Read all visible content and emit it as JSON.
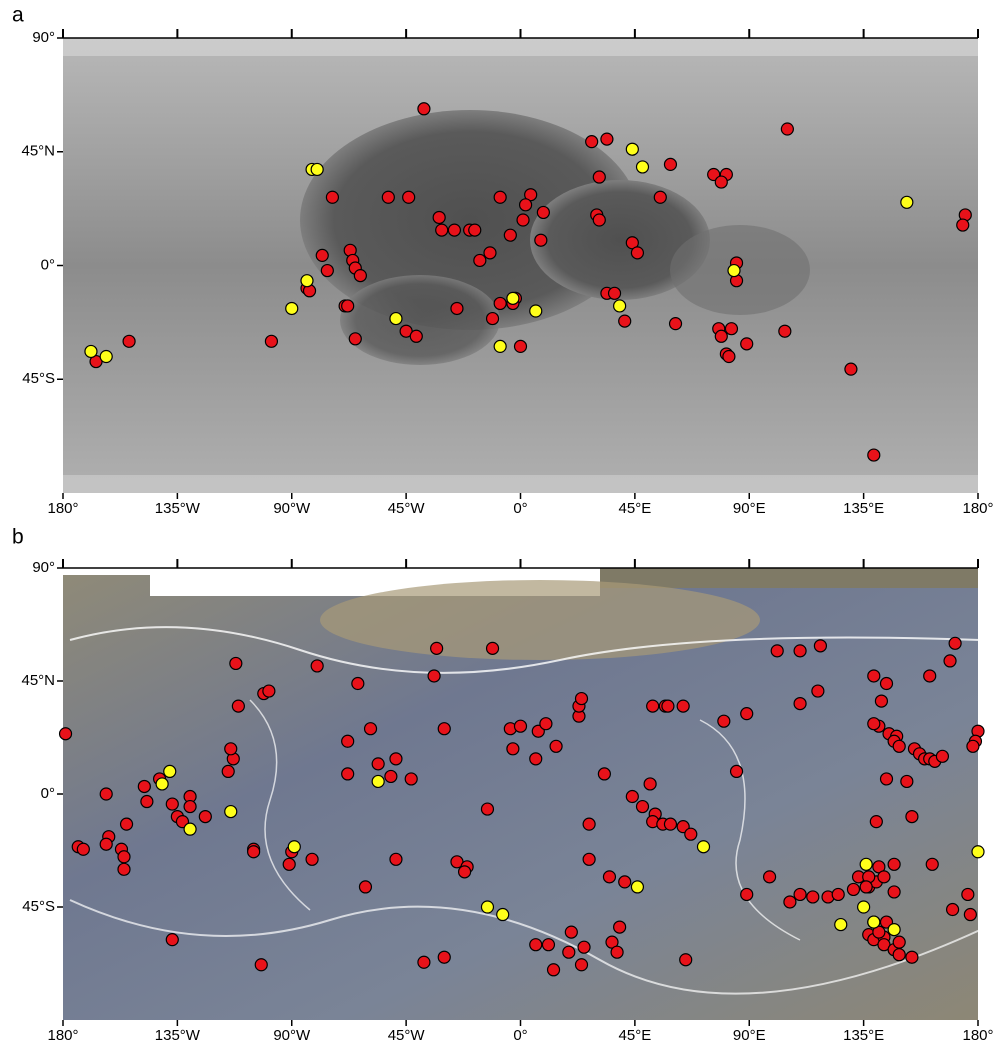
{
  "chart_data": [
    {
      "type": "scatter",
      "title": "a",
      "xlim": [
        -180,
        180
      ],
      "ylim": [
        -90,
        90
      ],
      "xticks": [
        {
          "value": -180,
          "label": "180°"
        },
        {
          "value": -135,
          "label": "135°W"
        },
        {
          "value": -90,
          "label": "90°W"
        },
        {
          "value": -45,
          "label": "45°W"
        },
        {
          "value": 0,
          "label": "0°"
        },
        {
          "value": 45,
          "label": "45°E"
        },
        {
          "value": 90,
          "label": "90°E"
        },
        {
          "value": 135,
          "label": "135°E"
        },
        {
          "value": 180,
          "label": "180°"
        }
      ],
      "yticks": [
        {
          "value": 90,
          "label": "90°"
        },
        {
          "value": 45,
          "label": "45°N"
        },
        {
          "value": 0,
          "label": "0°"
        },
        {
          "value": -45,
          "label": "45°S"
        }
      ],
      "series": [
        {
          "color": "#e8121a",
          "x": [
            -38,
            28,
            34,
            31,
            59,
            76,
            81,
            79,
            105,
            55,
            30,
            31,
            44,
            46,
            9,
            4,
            2,
            1,
            -8,
            8,
            -4,
            -12,
            -16,
            -32,
            -31,
            -26,
            -20,
            -18,
            -52,
            -44,
            -74,
            -78,
            -67,
            -66,
            -65,
            -63,
            -76,
            -84,
            -83,
            -69,
            -68,
            -65,
            -98,
            -154,
            -167,
            -45,
            -41,
            -25,
            -11,
            -8,
            -2,
            -3,
            0,
            34,
            37,
            41,
            61,
            78,
            79,
            83,
            81,
            82,
            89,
            85,
            85,
            104,
            130,
            139,
            175,
            174
          ],
          "y": [
            62,
            49,
            50,
            35,
            40,
            36,
            36,
            33,
            54,
            27,
            20,
            18,
            9,
            5,
            21,
            28,
            24,
            18,
            27,
            10,
            12,
            5,
            2,
            19,
            14,
            14,
            14,
            14,
            27,
            27,
            27,
            4,
            6,
            2,
            -1,
            -4,
            -2,
            -9,
            -10,
            -16,
            -16,
            -29,
            -30,
            -30,
            -38,
            -26,
            -28,
            -17,
            -21,
            -15,
            -13,
            -15,
            -32,
            -11,
            -11,
            -22,
            -23,
            -25,
            -28,
            -25,
            -35,
            -36,
            -31,
            1,
            -6,
            -26,
            -41,
            -75,
            20,
            16
          ]
        },
        {
          "color": "#ffff1a",
          "x": [
            -82,
            -80,
            44,
            48,
            152,
            84,
            -84,
            -90,
            -3,
            6,
            39,
            -49,
            -8,
            -169,
            -163
          ],
          "y": [
            38,
            38,
            46,
            39,
            25,
            -2,
            -6,
            -17,
            -13,
            -18,
            -16,
            -21,
            -32,
            -34,
            -36
          ]
        }
      ]
    },
    {
      "type": "scatter",
      "title": "b",
      "xlim": [
        -180,
        180
      ],
      "ylim": [
        -90,
        90
      ],
      "xticks": [
        {
          "value": -180,
          "label": "180°"
        },
        {
          "value": -135,
          "label": "135°W"
        },
        {
          "value": -90,
          "label": "90°W"
        },
        {
          "value": -45,
          "label": "45°W"
        },
        {
          "value": 0,
          "label": "0°"
        },
        {
          "value": 45,
          "label": "45°E"
        },
        {
          "value": 90,
          "label": "90°E"
        },
        {
          "value": 135,
          "label": "135°E"
        },
        {
          "value": 180,
          "label": "180°"
        }
      ],
      "yticks": [
        {
          "value": 90,
          "label": "90°"
        },
        {
          "value": 45,
          "label": "45°N"
        },
        {
          "value": 0,
          "label": "0°"
        },
        {
          "value": -45,
          "label": "45°S"
        }
      ],
      "series": [
        {
          "color": "#e8121a",
          "x": [
            -179,
            -163,
            -162,
            -163,
            -174,
            -172,
            -157,
            -156,
            -156,
            -155,
            -148,
            -147,
            -142,
            -137,
            -135,
            -133,
            -130,
            -130,
            -124,
            -115,
            -113,
            -114,
            -111,
            -112,
            -101,
            -99,
            -80,
            -105,
            -105,
            -90,
            -91,
            -82,
            -102,
            -137,
            -61,
            -64,
            -59,
            -68,
            -68,
            -56,
            -51,
            -49,
            -43,
            -49,
            -33,
            -34,
            -30,
            -38,
            -30,
            -25,
            -21,
            -22,
            -13,
            -11,
            -4,
            0,
            7,
            10,
            -3,
            6,
            14,
            6,
            11,
            19,
            25,
            20,
            13,
            24,
            27,
            36,
            38,
            39,
            23,
            23,
            24,
            27,
            33,
            44,
            48,
            52,
            57,
            58,
            64,
            51,
            53,
            52,
            56,
            59,
            64,
            67,
            35,
            41,
            65,
            80,
            89,
            85,
            98,
            89,
            106,
            110,
            118,
            117,
            101,
            110,
            110,
            115,
            121,
            125,
            131,
            137,
            140,
            133,
            137,
            136,
            141,
            147,
            143,
            147,
            139,
            137,
            139,
            143,
            143,
            147,
            149,
            144,
            141,
            154,
            149,
            162,
            154,
            140,
            139,
            144,
            142,
            141,
            139,
            145,
            148,
            147,
            149,
            155,
            157,
            159,
            161,
            163,
            166,
            171,
            169,
            161,
            180,
            179,
            178,
            170,
            176,
            177,
            152,
            144
          ],
          "y": [
            24,
            0,
            -17,
            -20,
            -21,
            -22,
            -22,
            -25,
            -30,
            -12,
            3,
            -3,
            6,
            -4,
            -9,
            -11,
            -1,
            -5,
            -9,
            9,
            14,
            18,
            35,
            52,
            40,
            41,
            51,
            -22,
            -23,
            -23,
            -28,
            -26,
            -68,
            -58,
            -37,
            44,
            26,
            21,
            8,
            12,
            7,
            14,
            6,
            -26,
            58,
            47,
            26,
            -67,
            -65,
            -27,
            -29,
            -31,
            -6,
            58,
            26,
            27,
            25,
            28,
            18,
            14,
            19,
            -60,
            -60,
            -63,
            -61,
            -55,
            -70,
            -68,
            -26,
            -59,
            -63,
            -53,
            31,
            35,
            38,
            -12,
            8,
            -1,
            -5,
            35,
            35,
            35,
            35,
            4,
            -8,
            -11,
            -12,
            -12,
            -13,
            -16,
            -33,
            -35,
            -66,
            29,
            32,
            9,
            -33,
            -40,
            -43,
            57,
            59,
            41,
            57,
            36,
            -40,
            -41,
            -41,
            -40,
            -38,
            -37,
            -35,
            -33,
            -33,
            -37,
            -29,
            -28,
            -33,
            -39,
            -51,
            -56,
            -58,
            -57,
            -60,
            -62,
            -59,
            -51,
            -55,
            -65,
            -64,
            -28,
            -9,
            -11,
            47,
            44,
            37,
            27,
            28,
            24,
            23,
            21,
            19,
            18,
            16,
            14,
            14,
            13,
            15,
            60,
            53,
            47,
            25,
            21,
            19,
            -46,
            -40,
            -48,
            5,
            6
          ]
        },
        {
          "color": "#ffff1a",
          "x": [
            -138,
            -141,
            -130,
            -114,
            -89,
            -56,
            -13,
            -7,
            72,
            46,
            126,
            136,
            135,
            139,
            147,
            180
          ],
          "y": [
            9,
            4,
            -14,
            -7,
            -21,
            5,
            -45,
            -48,
            -21,
            -37,
            -52,
            -28,
            -45,
            -51,
            -54,
            -23
          ]
        }
      ]
    }
  ]
}
